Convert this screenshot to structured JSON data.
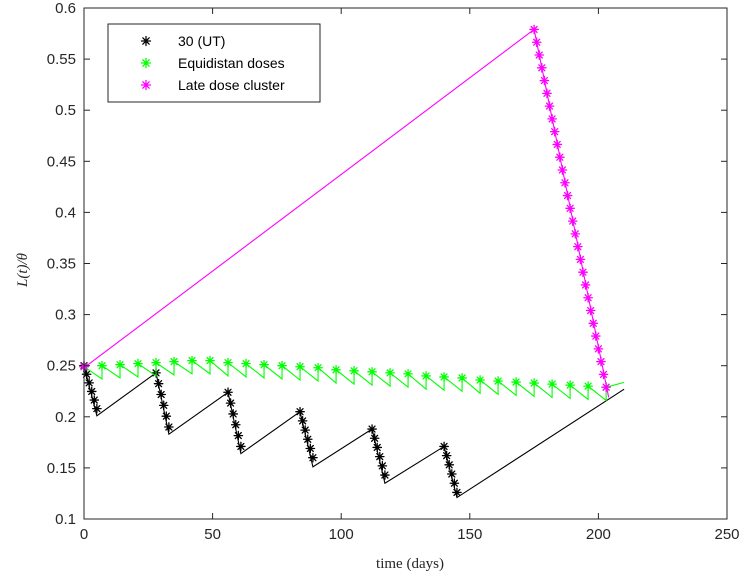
{
  "chart_data": {
    "type": "line",
    "xlabel": "time (days)",
    "ylabel": "L(t)/θ",
    "xlim": [
      0,
      250
    ],
    "ylim": [
      0.1,
      0.6
    ],
    "xticks": [
      0,
      50,
      100,
      150,
      200,
      250
    ],
    "yticks": [
      0.1,
      0.15,
      0.2,
      0.25,
      0.3,
      0.35,
      0.4,
      0.45,
      0.5,
      0.55,
      0.6
    ],
    "grid": false,
    "legend_position": "top-left",
    "series": [
      {
        "name": "30 (UT)",
        "color": "#000000",
        "line_x": [
          0,
          5,
          28,
          33,
          56,
          61,
          84,
          89,
          112,
          117,
          140,
          145,
          210
        ],
        "line_y": [
          0.25,
          0.201,
          0.243,
          0.183,
          0.224,
          0.164,
          0.205,
          0.151,
          0.188,
          0.135,
          0.171,
          0.121,
          0.227
        ],
        "markers": [
          {
            "x": [
              0,
              1,
              2,
              3,
              4,
              5
            ],
            "y_start": 0.25,
            "y_end": 0.208
          },
          {
            "x": [
              28,
              29,
              30,
              31,
              32,
              33
            ],
            "y_start": 0.243,
            "y_end": 0.19
          },
          {
            "x": [
              56,
              57,
              58,
              59,
              60,
              61
            ],
            "y_start": 0.224,
            "y_end": 0.171
          },
          {
            "x": [
              84,
              85,
              86,
              87,
              88,
              89
            ],
            "y_start": 0.205,
            "y_end": 0.16
          },
          {
            "x": [
              112,
              113,
              114,
              115,
              116,
              117
            ],
            "y_start": 0.188,
            "y_end": 0.143
          },
          {
            "x": [
              140,
              141,
              142,
              143,
              144,
              145
            ],
            "y_start": 0.171,
            "y_end": 0.126
          }
        ]
      },
      {
        "name": "Equidistan doses",
        "color": "#00ff00",
        "dose_x_start": 0,
        "dose_x_step": 7,
        "dose_count": 30,
        "marker_y": [
          0.249,
          0.25,
          0.251,
          0.252,
          0.253,
          0.254,
          0.255,
          0.255,
          0.253,
          0.252,
          0.251,
          0.25,
          0.249,
          0.248,
          0.246,
          0.245,
          0.244,
          0.243,
          0.242,
          0.24,
          0.239,
          0.238,
          0.236,
          0.235,
          0.234,
          0.233,
          0.232,
          0.231,
          0.23,
          0.229
        ],
        "drop": 0.013,
        "end_x": 210
      },
      {
        "name": "Late dose cluster",
        "color": "#ff00ff",
        "line_x": [
          0,
          175,
          204
        ],
        "line_y": [
          0.248,
          0.579,
          0.219
        ],
        "marker_x": [
          175,
          176,
          177,
          178,
          179,
          180,
          181,
          182,
          183,
          184,
          185,
          186,
          187,
          188,
          189,
          190,
          191,
          192,
          193,
          194,
          195,
          196,
          197,
          198,
          199,
          200,
          201,
          202,
          203
        ],
        "marker_y_start": 0.579,
        "marker_y_end": 0.229,
        "extra_markers": [
          {
            "x": 0,
            "y": 0.249
          }
        ]
      }
    ]
  }
}
